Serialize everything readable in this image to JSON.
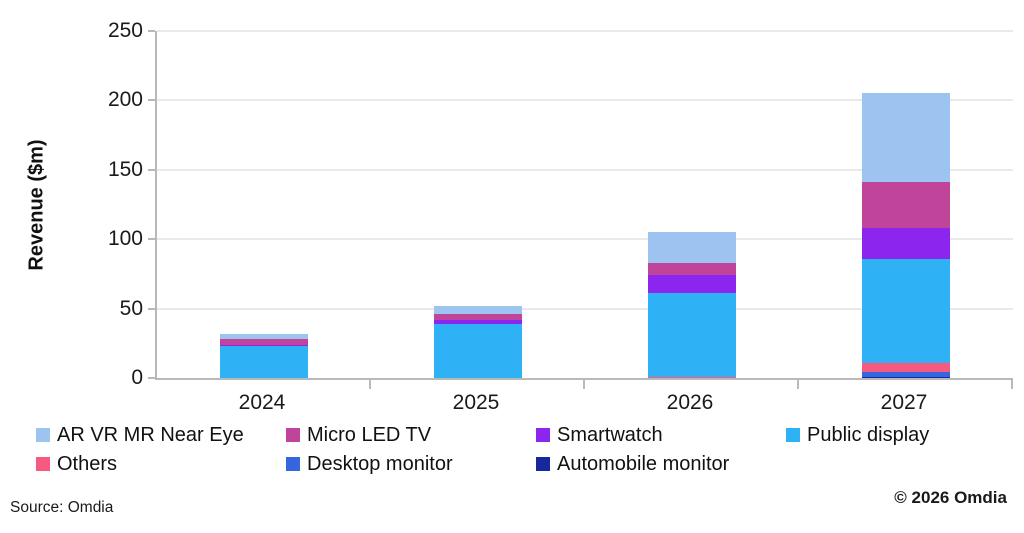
{
  "chart_data": {
    "type": "bar",
    "stacked": true,
    "title": "",
    "xlabel": "",
    "ylabel": "Revenue ($m)",
    "categories": [
      "2024",
      "2025",
      "2026",
      "2027"
    ],
    "series": [
      {
        "name": "Automobile monitor",
        "color": "#17289D",
        "values": [
          0,
          0,
          0,
          1
        ]
      },
      {
        "name": "Desktop monitor",
        "color": "#3566DF",
        "values": [
          0,
          0,
          0,
          3
        ]
      },
      {
        "name": "Others",
        "color": "#F7597F",
        "values": [
          0,
          0,
          1,
          7
        ]
      },
      {
        "name": "Public display",
        "color": "#2EB2F5",
        "values": [
          23,
          39,
          60,
          75
        ]
      },
      {
        "name": "Smartwatch",
        "color": "#8C26EF",
        "values": [
          1,
          3,
          13,
          22
        ]
      },
      {
        "name": "Micro LED TV",
        "color": "#C0449A",
        "values": [
          4,
          4,
          9,
          33
        ]
      },
      {
        "name": "AR VR MR Near Eye",
        "color": "#9DC4F1",
        "values": [
          4,
          6,
          22,
          64
        ]
      }
    ],
    "totals": [
      32,
      52,
      105,
      205
    ],
    "ylim": [
      0,
      250
    ],
    "yticks": [
      0,
      50,
      100,
      150,
      200,
      250
    ],
    "grid": true,
    "legend_position": "bottom",
    "legend_order": [
      "AR VR MR Near Eye",
      "Micro LED TV",
      "Smartwatch",
      "Public display",
      "Others",
      "Desktop monitor",
      "Automobile monitor"
    ]
  },
  "footer": {
    "source": "Source: Omdia",
    "copyright": "© 2026 Omdia"
  },
  "style_colors": {
    "axis": "#b9b9b9",
    "gridline": "#e9e9e9",
    "text": "#1a1a1a",
    "background": "#ffffff"
  }
}
